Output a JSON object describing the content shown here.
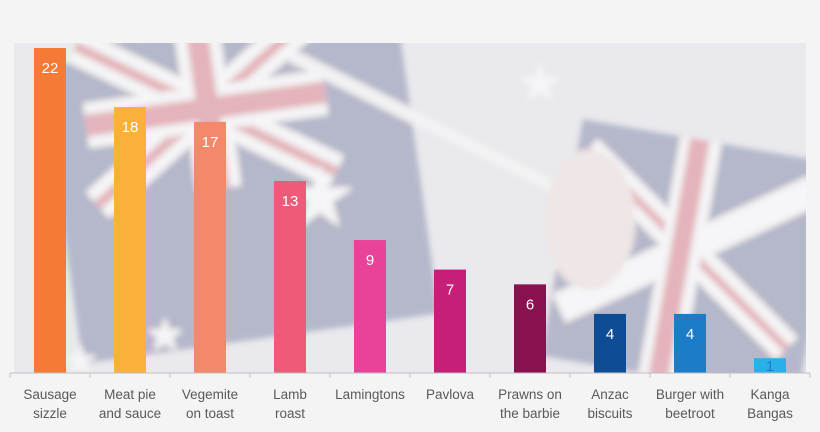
{
  "chart_data": {
    "type": "bar",
    "categories": [
      [
        "Sausage",
        "sizzle"
      ],
      [
        "Meat pie",
        "and sauce"
      ],
      [
        "Vegemite",
        "on toast"
      ],
      [
        "Lamb",
        "roast"
      ],
      [
        "Lamingtons"
      ],
      [
        "Pavlova"
      ],
      [
        "Prawns on",
        "the barbie"
      ],
      [
        "Anzac",
        "biscuits"
      ],
      [
        "Burger with",
        "beetroot"
      ],
      [
        "Kanga",
        "Bangas"
      ]
    ],
    "values": [
      22,
      18,
      17,
      13,
      9,
      7,
      6,
      4,
      4,
      1
    ],
    "data_labels": [
      "22",
      "18",
      "17",
      "13",
      "9",
      "7",
      "6",
      "4",
      "4",
      "1"
    ],
    "colors": [
      "#f47a36",
      "#fbb03b",
      "#f5876a",
      "#ed5a7a",
      "#e84398",
      "#c51f78",
      "#8a1150",
      "#0f4c96",
      "#1c7cc8",
      "#29b0ea"
    ],
    "label_colors": [
      "#ffffff",
      "#ffffff",
      "#ffffff",
      "#ffffff",
      "#ffffff",
      "#ffffff",
      "#ffffff",
      "#ffffff",
      "#ffffff",
      "#1c7cc8"
    ],
    "ylim": [
      0,
      22
    ],
    "grid": false,
    "legend": "none",
    "title": "",
    "xlabel": "",
    "ylabel": "",
    "background_image": "blurred-australian-flags"
  }
}
